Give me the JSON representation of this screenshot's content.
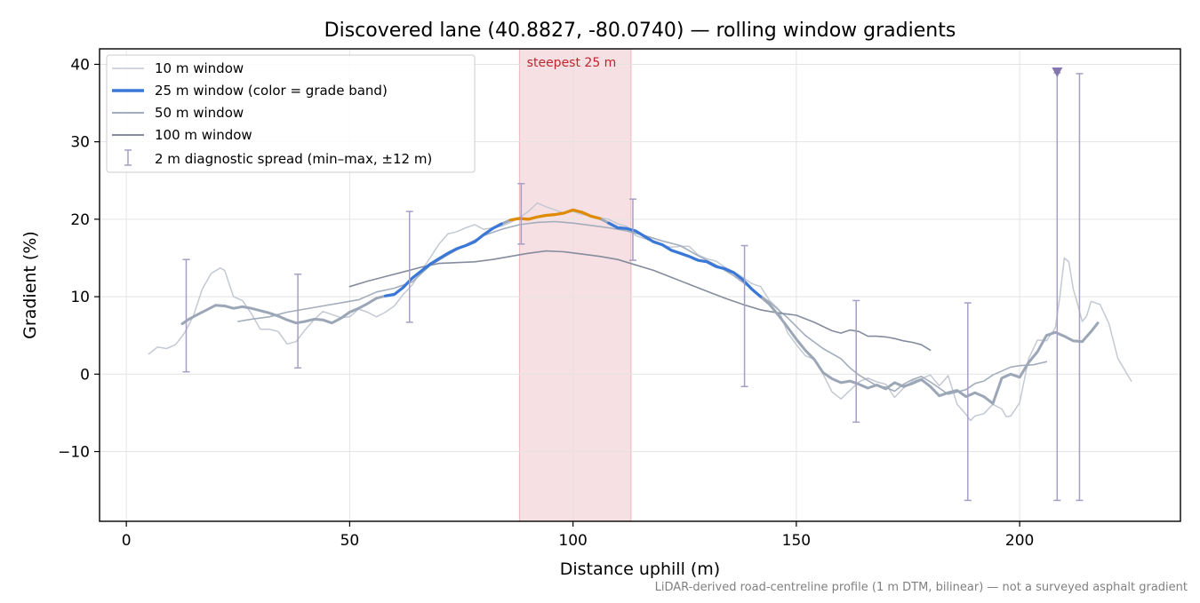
{
  "chart_data": {
    "type": "line",
    "title": "Discovered lane (40.8827, -80.0740) — rolling window gradients",
    "xlabel": "Distance uphill (m)",
    "ylabel": "Gradient (%)",
    "xlim": [
      -6,
      236
    ],
    "ylim": [
      -19,
      42
    ],
    "x_ticks": [
      0,
      50,
      100,
      150,
      200
    ],
    "y_ticks": [
      -10,
      0,
      10,
      20,
      30,
      40
    ],
    "x_tick_labels": [
      "0",
      "50",
      "100",
      "150",
      "200"
    ],
    "y_tick_labels": [
      "−10",
      "0",
      "10",
      "20",
      "30",
      "40"
    ],
    "grid": true,
    "legend_position": "upper-left",
    "footnote": "LiDAR-derived road-centreline profile (1 m DTM, bilinear) — not a surveyed asphalt gradient",
    "highlight": {
      "label": "steepest 25 m",
      "x_start": 88,
      "x_end": 113,
      "color": "#d9727f"
    },
    "colors": {
      "w10": "#c3c9d3",
      "w25": "#9ba6b6",
      "w25_blue": "#3a78d8",
      "w25_orange": "#e08a00",
      "w50": "#a3adbc",
      "w100": "#848c9d",
      "spread": "#a79ec4",
      "marker": "#8577ad"
    },
    "series": [
      {
        "name": "10 m window",
        "style": "w10",
        "x": [
          5,
          7,
          9,
          11,
          13,
          15,
          17,
          19,
          21,
          22,
          24,
          26,
          28,
          30,
          32,
          34,
          36,
          38,
          40,
          42,
          44,
          46,
          48,
          50,
          52,
          54,
          56,
          58,
          60,
          62,
          64,
          66,
          68,
          70,
          72,
          74,
          76,
          78,
          80,
          82,
          84,
          86,
          88,
          90,
          92,
          94,
          96,
          98,
          100,
          102,
          104,
          106,
          108,
          110,
          112,
          114,
          116,
          118,
          120,
          122,
          124,
          126,
          128,
          130,
          132,
          134,
          136,
          138,
          140,
          142,
          144,
          146,
          148,
          150,
          152,
          154,
          156,
          158,
          160,
          162,
          164,
          166,
          168,
          170,
          172,
          174,
          176,
          178,
          180,
          182,
          184,
          186,
          188,
          189,
          190,
          192,
          194,
          196,
          197,
          198,
          200,
          202,
          204,
          206,
          208,
          209,
          210,
          211,
          212,
          213,
          214,
          215,
          216,
          218,
          220,
          222,
          225
        ],
        "y": [
          2.6,
          3.5,
          3.3,
          3.8,
          5.3,
          7.5,
          11.0,
          13.0,
          13.7,
          13.4,
          10.0,
          9.5,
          7.8,
          5.8,
          5.8,
          5.5,
          3.9,
          4.2,
          5.7,
          7.0,
          8.1,
          7.7,
          7.3,
          7.4,
          8.4,
          8.0,
          7.4,
          8.0,
          8.8,
          10.3,
          11.5,
          13.3,
          15.0,
          16.8,
          18.1,
          18.4,
          18.9,
          19.3,
          18.7,
          18.9,
          19.1,
          19.6,
          20.2,
          21.0,
          22.1,
          21.6,
          21.2,
          20.8,
          21.0,
          20.6,
          20.5,
          20.2,
          20.0,
          19.4,
          19.1,
          17.9,
          17.5,
          17.1,
          16.6,
          16.4,
          16.5,
          16.5,
          15.4,
          14.9,
          14.6,
          13.8,
          13.2,
          12.5,
          11.7,
          11.3,
          9.5,
          8.4,
          5.4,
          3.8,
          2.4,
          1.9,
          0.0,
          -2.3,
          -3.2,
          -2.1,
          -1.0,
          -0.5,
          -1.0,
          -1.3,
          -3.0,
          -1.8,
          -0.9,
          -0.6,
          -0.1,
          -1.5,
          -0.2,
          -3.9,
          -5.2,
          -6.0,
          -5.4,
          -5.1,
          -3.9,
          -4.5,
          -5.5,
          -5.4,
          -3.7,
          2.0,
          4.4,
          4.3,
          6.0,
          10.0,
          15.0,
          14.5,
          11.0,
          9.0,
          6.8,
          7.5,
          9.4,
          9.0,
          6.5,
          2.0,
          -0.9
        ]
      },
      {
        "name": "25 m window (color = grade band)",
        "style": "w25",
        "x": [
          12.5,
          14,
          16,
          18,
          20,
          22,
          24,
          26,
          28,
          30,
          32,
          34,
          36,
          38,
          40,
          42,
          44,
          46,
          48,
          50,
          52,
          54,
          56,
          58,
          60,
          62,
          64,
          66,
          68,
          70,
          72,
          74,
          76,
          78,
          80,
          82,
          84,
          86,
          88,
          90,
          92,
          94,
          96,
          98,
          100,
          102,
          104,
          106,
          108,
          110,
          112,
          114,
          116,
          118,
          120,
          122,
          124,
          126,
          128,
          130,
          132,
          134,
          136,
          138,
          140,
          142,
          144,
          146,
          148,
          150,
          152,
          154,
          156,
          158,
          160,
          162,
          164,
          166,
          168,
          170,
          172,
          174,
          176,
          178,
          180,
          182,
          184,
          186,
          188,
          190,
          192,
          194,
          196,
          198,
          200,
          202,
          204,
          206,
          208,
          210,
          212,
          214,
          216,
          217.5
        ],
        "y": [
          6.5,
          7.1,
          7.7,
          8.3,
          8.9,
          8.8,
          8.5,
          8.7,
          8.5,
          8.2,
          7.9,
          7.5,
          7.0,
          6.6,
          6.8,
          7.1,
          7.0,
          6.6,
          7.2,
          8.0,
          8.5,
          9.1,
          9.8,
          10.1,
          10.3,
          11.2,
          12.4,
          13.3,
          14.2,
          14.9,
          15.6,
          16.2,
          16.6,
          17.1,
          18.0,
          18.8,
          19.4,
          19.9,
          20.1,
          20.0,
          20.3,
          20.5,
          20.6,
          20.8,
          21.2,
          20.9,
          20.4,
          20.1,
          19.5,
          18.9,
          18.8,
          18.5,
          17.8,
          17.1,
          16.7,
          16.0,
          15.6,
          15.2,
          14.7,
          14.5,
          13.9,
          13.6,
          13.1,
          12.2,
          11.0,
          10.0,
          9.0,
          7.6,
          6.1,
          4.5,
          3.1,
          1.9,
          0.2,
          -0.6,
          -1.1,
          -0.9,
          -1.3,
          -1.8,
          -1.4,
          -1.9,
          -1.1,
          -1.6,
          -1.2,
          -0.7,
          -1.6,
          -2.8,
          -2.4,
          -2.1,
          -2.9,
          -2.4,
          -2.9,
          -3.8,
          -0.5,
          0.0,
          -0.4,
          1.5,
          2.9,
          5.0,
          5.4,
          4.9,
          4.3,
          4.2,
          5.5,
          6.6
        ],
        "highlight_x_range": [
          58,
          142
        ],
        "orange_x_range": [
          85,
          107
        ]
      },
      {
        "name": "50 m window",
        "style": "w50",
        "x": [
          25,
          28,
          32,
          36,
          40,
          44,
          48,
          52,
          56,
          60,
          64,
          68,
          72,
          76,
          80,
          84,
          88,
          92,
          96,
          100,
          104,
          108,
          112,
          116,
          120,
          124,
          128,
          132,
          136,
          140,
          144,
          148,
          152,
          156,
          160,
          162,
          164,
          166,
          168,
          170,
          172,
          174,
          176,
          178,
          180,
          182,
          184,
          186,
          188,
          190,
          192,
          194,
          196,
          198,
          200,
          203,
          206
        ],
        "y": [
          6.8,
          7.1,
          7.4,
          8.0,
          8.4,
          8.8,
          9.2,
          9.6,
          10.6,
          11.1,
          11.9,
          14.0,
          15.4,
          16.7,
          17.9,
          18.7,
          19.3,
          19.6,
          19.7,
          19.5,
          19.2,
          18.9,
          18.5,
          17.9,
          17.2,
          16.6,
          15.3,
          14.1,
          12.7,
          11.0,
          9.3,
          7.3,
          5.0,
          3.3,
          2.0,
          0.8,
          -0.1,
          -0.8,
          -1.5,
          -1.7,
          -2.2,
          -1.3,
          -0.7,
          -0.3,
          -1.0,
          -1.8,
          -2.6,
          -2.3,
          -2.0,
          -1.2,
          -0.9,
          -0.1,
          0.4,
          0.9,
          1.1,
          1.2,
          1.6
        ]
      },
      {
        "name": "100 m window",
        "style": "w100",
        "x": [
          50,
          54,
          58,
          62,
          66,
          70,
          74,
          78,
          82,
          86,
          90,
          94,
          98,
          102,
          106,
          110,
          114,
          118,
          122,
          126,
          130,
          134,
          138,
          142,
          146,
          150,
          154,
          158,
          160,
          162,
          164,
          166,
          168,
          170,
          172,
          174,
          176,
          178,
          180
        ],
        "y": [
          11.3,
          12.0,
          12.6,
          13.2,
          13.8,
          14.3,
          14.4,
          14.5,
          14.8,
          15.2,
          15.6,
          15.9,
          15.8,
          15.5,
          15.2,
          14.8,
          14.1,
          13.4,
          12.5,
          11.6,
          10.7,
          9.8,
          9.0,
          8.3,
          7.9,
          7.6,
          6.7,
          5.6,
          5.3,
          5.7,
          5.5,
          4.9,
          4.9,
          4.8,
          4.6,
          4.3,
          4.1,
          3.8,
          3.1
        ]
      }
    ],
    "spread": {
      "name": "2 m diagnostic spread (min–max, ±12 m)",
      "bars": [
        {
          "x": 13.4,
          "min": 0.3,
          "max": 14.8
        },
        {
          "x": 38.4,
          "min": 0.8,
          "max": 12.9
        },
        {
          "x": 63.4,
          "min": 6.7,
          "max": 21.0
        },
        {
          "x": 88.4,
          "min": 16.8,
          "max": 24.6
        },
        {
          "x": 113.4,
          "min": 14.7,
          "max": 22.6
        },
        {
          "x": 138.4,
          "min": -1.6,
          "max": 16.6
        },
        {
          "x": 163.4,
          "min": -6.2,
          "max": 9.5
        },
        {
          "x": 188.4,
          "min": -16.3,
          "max": 9.2
        },
        {
          "x": 208.4,
          "min": -16.3,
          "max": 38.9
        },
        {
          "x": 213.4,
          "min": -16.3,
          "max": 38.8
        }
      ],
      "marker": {
        "x": 208.4,
        "y": 38.9
      }
    }
  }
}
